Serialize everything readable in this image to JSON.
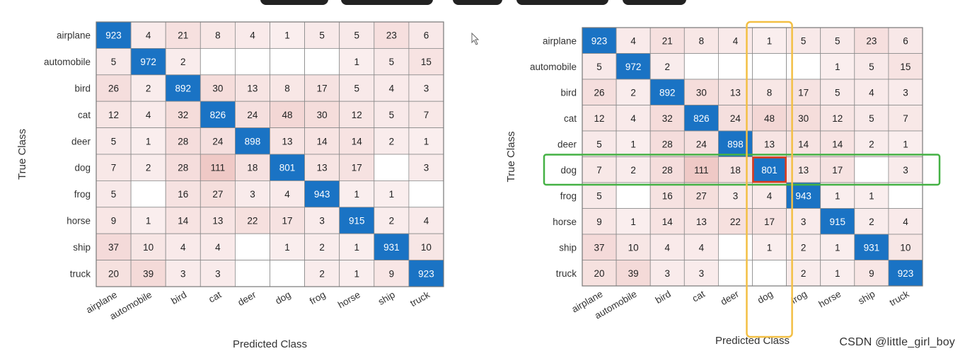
{
  "chart_data": [
    {
      "type": "heatmap",
      "title": "",
      "xlabel": "Predicted Class",
      "ylabel": "True Class",
      "classes": [
        "airplane",
        "automobile",
        "bird",
        "cat",
        "deer",
        "dog",
        "frog",
        "horse",
        "ship",
        "truck"
      ],
      "values": [
        [
          923,
          4,
          21,
          8,
          4,
          1,
          5,
          5,
          23,
          6
        ],
        [
          5,
          972,
          2,
          null,
          null,
          null,
          null,
          1,
          5,
          15
        ],
        [
          26,
          2,
          892,
          30,
          13,
          8,
          17,
          5,
          4,
          3
        ],
        [
          12,
          4,
          32,
          826,
          24,
          48,
          30,
          12,
          5,
          7
        ],
        [
          5,
          1,
          28,
          24,
          898,
          13,
          14,
          14,
          2,
          1
        ],
        [
          7,
          2,
          28,
          111,
          18,
          801,
          13,
          17,
          null,
          3
        ],
        [
          5,
          null,
          16,
          27,
          3,
          4,
          943,
          1,
          1,
          null
        ],
        [
          9,
          1,
          14,
          13,
          22,
          17,
          3,
          915,
          2,
          4
        ],
        [
          37,
          10,
          4,
          4,
          null,
          1,
          2,
          1,
          931,
          10
        ],
        [
          20,
          39,
          3,
          3,
          null,
          null,
          2,
          1,
          9,
          923
        ]
      ],
      "highlight": null
    },
    {
      "type": "heatmap",
      "title": "",
      "xlabel": "Predicted Class",
      "ylabel": "True Class",
      "classes": [
        "airplane",
        "automobile",
        "bird",
        "cat",
        "deer",
        "dog",
        "frog",
        "horse",
        "ship",
        "truck"
      ],
      "values": [
        [
          923,
          4,
          21,
          8,
          4,
          1,
          5,
          5,
          23,
          6
        ],
        [
          5,
          972,
          2,
          null,
          null,
          null,
          null,
          1,
          5,
          15
        ],
        [
          26,
          2,
          892,
          30,
          13,
          8,
          17,
          5,
          4,
          3
        ],
        [
          12,
          4,
          32,
          826,
          24,
          48,
          30,
          12,
          5,
          7
        ],
        [
          5,
          1,
          28,
          24,
          898,
          13,
          14,
          14,
          2,
          1
        ],
        [
          7,
          2,
          28,
          111,
          18,
          801,
          13,
          17,
          null,
          3
        ],
        [
          5,
          null,
          16,
          27,
          3,
          4,
          943,
          1,
          1,
          null
        ],
        [
          9,
          1,
          14,
          13,
          22,
          17,
          3,
          915,
          2,
          4
        ],
        [
          37,
          10,
          4,
          4,
          null,
          1,
          2,
          1,
          931,
          10
        ],
        [
          20,
          39,
          3,
          3,
          null,
          null,
          2,
          1,
          9,
          923
        ]
      ],
      "highlight": {
        "column": "dog",
        "row": "dog",
        "column_color": "#f3bf44",
        "row_color": "#44b144",
        "cell_color": "#e0391b"
      }
    }
  ],
  "colors": {
    "diagonal": "#1a73c4",
    "offdiag_base": "#fbf2f2",
    "offdiag_strong": "#efc9c6",
    "grid": "#8a8a8a",
    "label_text": "#333333"
  },
  "watermark": "CSDN @little_girl_boy"
}
